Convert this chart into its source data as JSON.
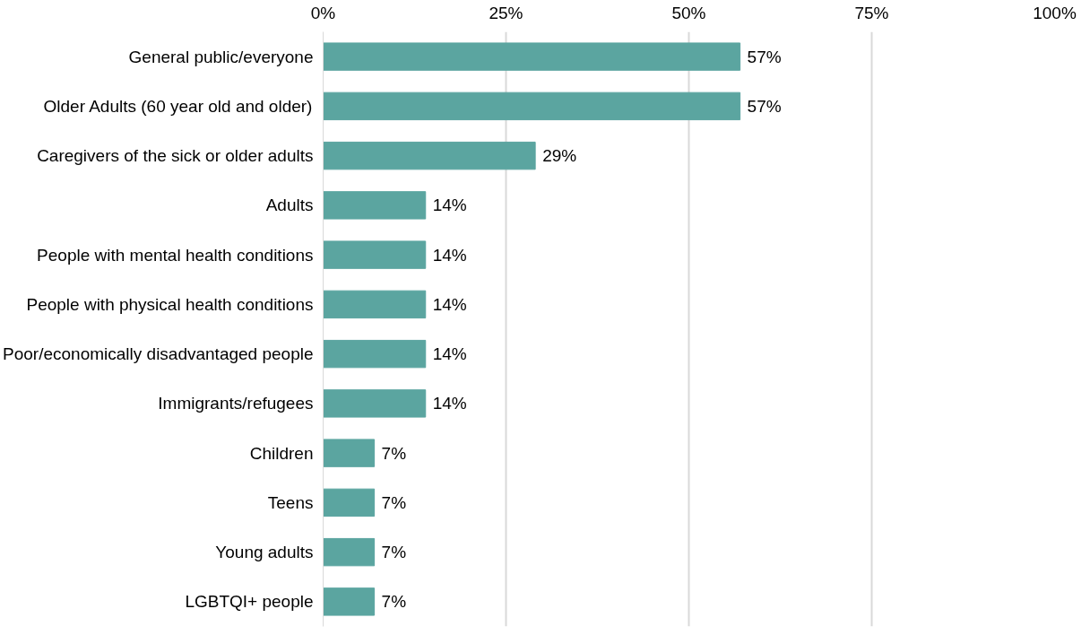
{
  "chart_data": {
    "type": "bar",
    "orientation": "horizontal",
    "categories": [
      "General public/everyone",
      "Older Adults (60 year old and older)",
      "Caregivers of the sick or older adults",
      "Adults",
      "People with mental health conditions",
      "People with physical health conditions",
      "Poor/economically disadvantaged people",
      "Immigrants/refugees",
      "Children",
      "Teens",
      "Young adults",
      "LGBTQI+ people"
    ],
    "values": [
      57,
      57,
      29,
      14,
      14,
      14,
      14,
      14,
      7,
      7,
      7,
      7
    ],
    "value_labels": [
      "57%",
      "57%",
      "29%",
      "14%",
      "14%",
      "14%",
      "14%",
      "14%",
      "7%",
      "7%",
      "7%",
      "7%"
    ],
    "color": "#5ba5a0",
    "xlim": [
      0,
      100
    ],
    "xticks": [
      {
        "value": 0,
        "label": "0%"
      },
      {
        "value": 25,
        "label": "25%"
      },
      {
        "value": 50,
        "label": "50%"
      },
      {
        "value": 75,
        "label": "75%"
      },
      {
        "value": 100,
        "label": "100%"
      }
    ],
    "grid": "x"
  }
}
